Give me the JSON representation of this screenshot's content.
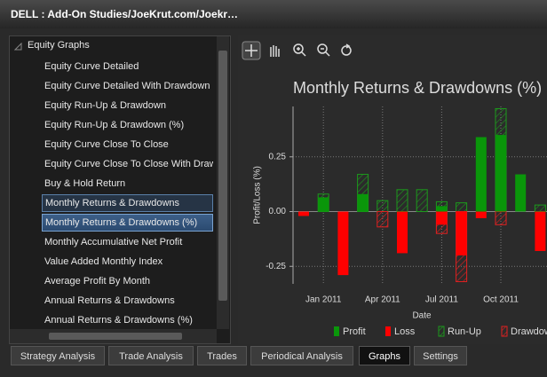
{
  "window": {
    "title": "DELL : Add-On Studies/JoeKrut.com/Joekr…"
  },
  "tree": {
    "root": "Equity Graphs",
    "items": [
      "Equity Curve Detailed",
      "Equity Curve Detailed With Drawdown",
      "Equity Run-Up & Drawdown",
      "Equity Run-Up & Drawdown (%)",
      "Equity Curve Close To Close",
      "Equity Curve Close To Close With Drawd",
      "Buy & Hold Return",
      "Monthly Returns & Drawdowns",
      "Monthly Returns & Drawdowns (%)",
      "Monthly Accumulative Net Profit",
      "Value Added Monthly Index",
      "Average Profit By Month",
      "Annual Returns & Drawdowns",
      "Annual Returns & Drawdowns (%)"
    ]
  },
  "tabs": [
    "Strategy Analysis",
    "Trade Analysis",
    "Trades",
    "Periodical Analysis",
    "Graphs",
    "Settings"
  ],
  "chart": {
    "type": "bar",
    "title": "Monthly Returns & Drawdowns (%)",
    "x_label": "Date",
    "y_label": "Profit/Loss (%)",
    "categories": [
      null,
      "Jan 2011",
      null,
      null,
      "Apr 2011",
      null,
      null,
      "Jul 2011",
      null,
      null,
      "Oct 2011",
      null,
      null
    ],
    "series": [
      {
        "name": "Run-Up",
        "color": "#1c9a1c",
        "hatched": true,
        "values": [
          null,
          0.08,
          null,
          0.17,
          0.05,
          0.1,
          0.1,
          0.045,
          0.04,
          null,
          0.47,
          null,
          0.03
        ]
      },
      {
        "name": "Drawdown",
        "color": "#e02020",
        "hatched": true,
        "values": [
          null,
          null,
          null,
          null,
          -0.07,
          null,
          null,
          -0.1,
          -0.32,
          null,
          -0.06,
          null,
          null
        ]
      },
      {
        "name": "Profit",
        "color": "#0a960a",
        "hatched": false,
        "values": [
          null,
          0.065,
          null,
          0.08,
          null,
          null,
          null,
          0.025,
          null,
          0.34,
          0.35,
          0.17,
          null
        ]
      },
      {
        "name": "Loss",
        "color": "#ff0000",
        "hatched": false,
        "values": [
          -0.02,
          null,
          -0.29,
          null,
          null,
          -0.19,
          null,
          -0.06,
          -0.2,
          -0.03,
          null,
          null,
          -0.18
        ]
      }
    ],
    "legend_order": [
      2,
      3,
      0,
      1
    ],
    "ylim": [
      -0.33,
      0.48
    ],
    "yticks": [
      -0.25,
      {
        "value": 0,
        "label": "0.00"
      },
      0.25
    ],
    "grid": true
  }
}
